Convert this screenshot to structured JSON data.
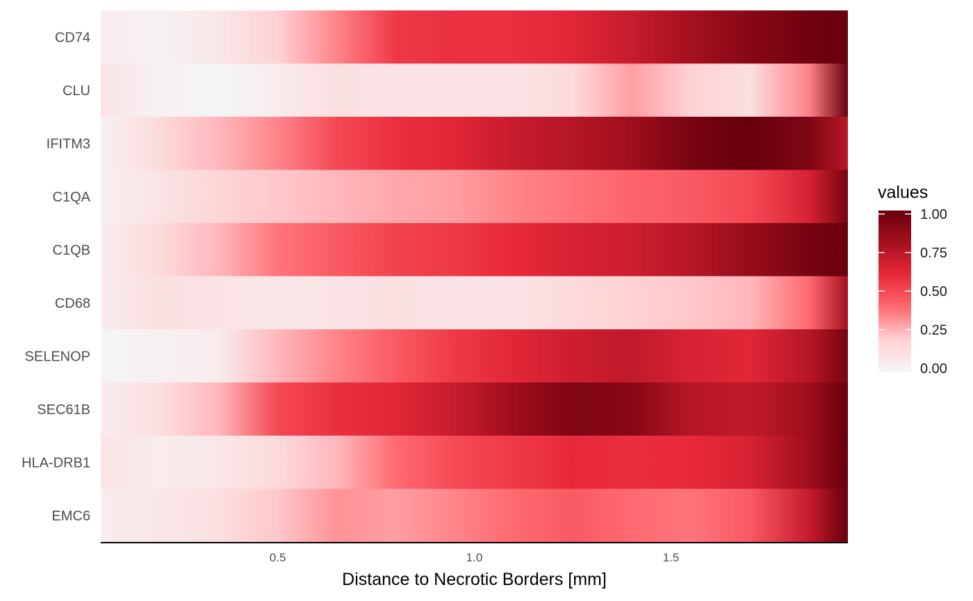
{
  "chart_data": {
    "type": "heatmap",
    "title": "",
    "xlabel": "Distance to Necrotic Borders [mm]",
    "ylabel": "",
    "xlim": [
      0.05,
      1.95
    ],
    "x_ticks": [
      "0.5",
      "1.0",
      "1.5"
    ],
    "x_tick_values": [
      0.5,
      1.0,
      1.5
    ],
    "x": [
      0.05,
      0.2,
      0.35,
      0.5,
      0.65,
      0.8,
      0.95,
      1.1,
      1.25,
      1.4,
      1.55,
      1.7,
      1.85,
      1.95
    ],
    "rows": [
      "CD74",
      "CLU",
      "IFITM3",
      "C1QA",
      "C1QB",
      "CD68",
      "SELENOP",
      "SEC61B",
      "HLA-DRB1",
      "EMC6"
    ],
    "values": [
      [
        0.05,
        0.02,
        0.08,
        0.2,
        0.35,
        0.55,
        0.58,
        0.58,
        0.62,
        0.7,
        0.8,
        0.9,
        0.97,
        1.0
      ],
      [
        0.1,
        0.02,
        0.0,
        0.05,
        0.12,
        0.1,
        0.1,
        0.1,
        0.15,
        0.3,
        0.2,
        0.12,
        0.35,
        1.0
      ],
      [
        0.02,
        0.15,
        0.25,
        0.35,
        0.5,
        0.58,
        0.62,
        0.7,
        0.75,
        0.82,
        0.95,
        1.0,
        0.92,
        0.75
      ],
      [
        0.03,
        0.1,
        0.18,
        0.22,
        0.25,
        0.28,
        0.3,
        0.35,
        0.38,
        0.42,
        0.45,
        0.5,
        0.65,
        0.95
      ],
      [
        0.05,
        0.15,
        0.25,
        0.38,
        0.45,
        0.52,
        0.55,
        0.6,
        0.65,
        0.68,
        0.75,
        0.85,
        0.95,
        1.0
      ],
      [
        0.05,
        0.12,
        0.1,
        0.08,
        0.1,
        0.12,
        0.1,
        0.1,
        0.15,
        0.2,
        0.22,
        0.25,
        0.4,
        0.8
      ],
      [
        0.0,
        0.03,
        0.05,
        0.25,
        0.35,
        0.45,
        0.55,
        0.62,
        0.68,
        0.72,
        0.65,
        0.62,
        0.75,
        0.95
      ],
      [
        0.05,
        0.12,
        0.25,
        0.5,
        0.58,
        0.62,
        0.7,
        0.82,
        0.92,
        0.9,
        0.75,
        0.72,
        0.82,
        1.0
      ],
      [
        0.1,
        0.05,
        0.08,
        0.15,
        0.25,
        0.4,
        0.5,
        0.55,
        0.6,
        0.58,
        0.6,
        0.65,
        0.82,
        1.0
      ],
      [
        0.05,
        0.08,
        0.12,
        0.22,
        0.32,
        0.3,
        0.35,
        0.4,
        0.45,
        0.4,
        0.38,
        0.45,
        0.7,
        1.0
      ]
    ],
    "colorscale": [
      "#f5f5f5",
      "#ffd1d4",
      "#ff6a70",
      "#e8283a",
      "#a5101f",
      "#68000c"
    ],
    "legend": {
      "title": "values",
      "ticks": [
        "0.00",
        "0.25",
        "0.50",
        "0.75",
        "1.00"
      ],
      "tick_values": [
        0.0,
        0.25,
        0.5,
        0.75,
        1.0
      ],
      "placement": "right"
    },
    "grid": false
  }
}
